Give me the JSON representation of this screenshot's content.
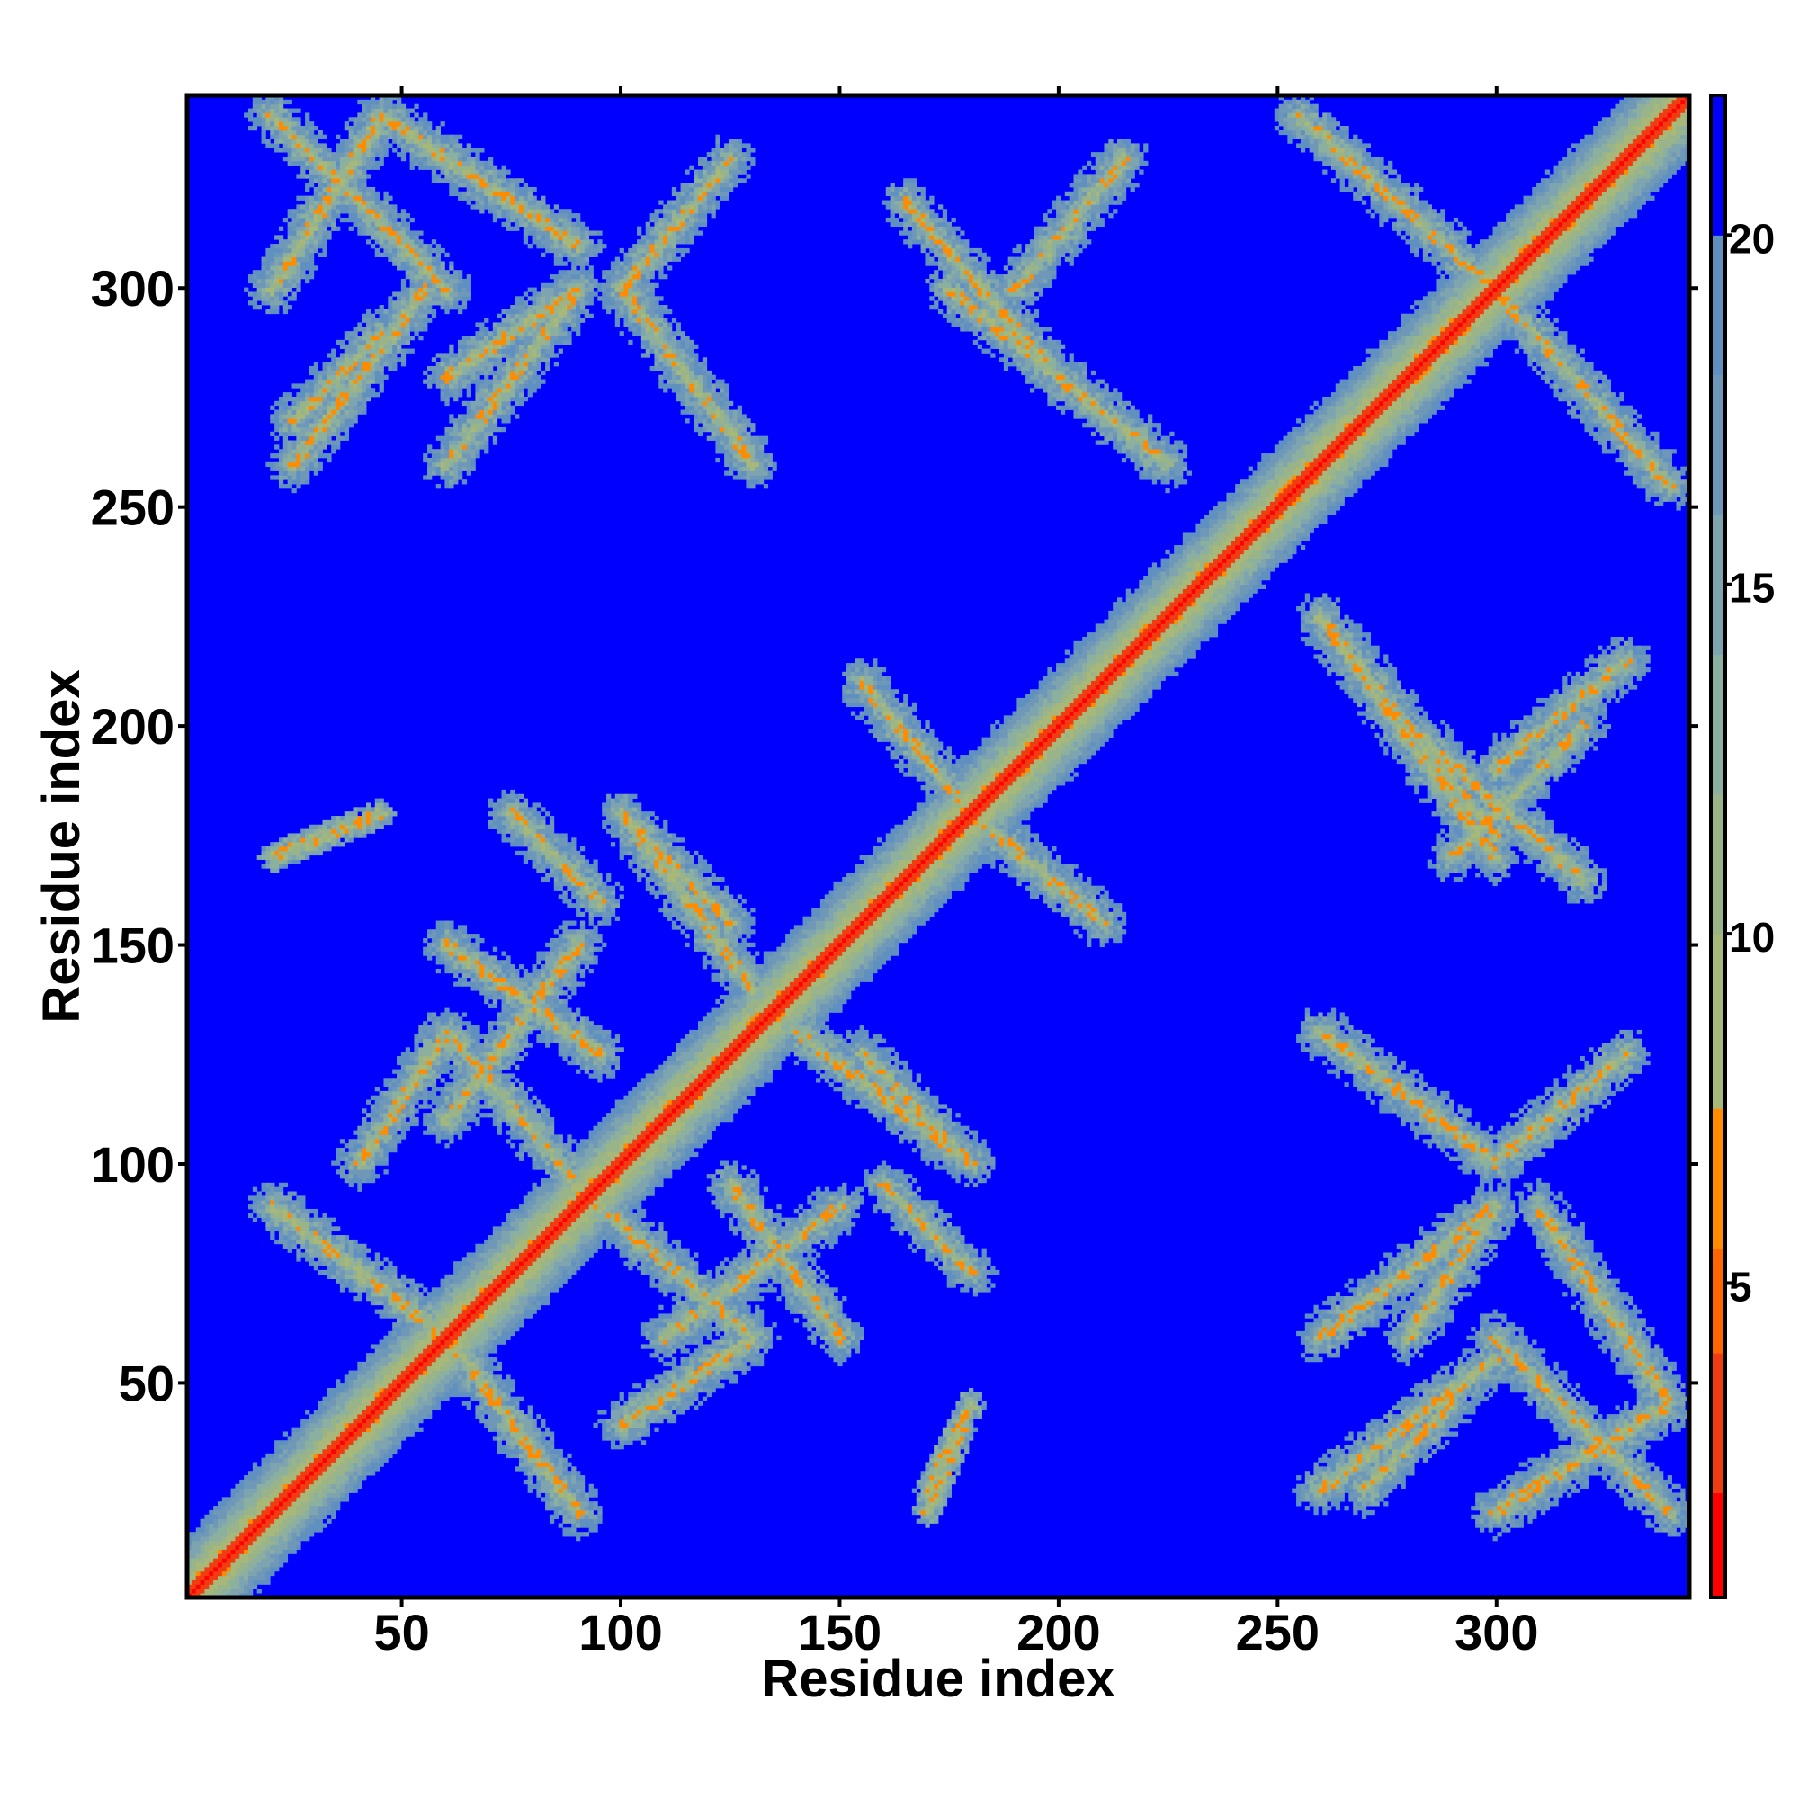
{
  "chart_data": {
    "type": "heatmap",
    "title": "",
    "xlabel": "Residue index",
    "ylabel": "Residue index",
    "n_residues": 344,
    "xlim": [
      1,
      344
    ],
    "ylim": [
      1,
      344
    ],
    "x_ticks": [
      50,
      100,
      150,
      200,
      250,
      300
    ],
    "y_ticks": [
      50,
      100,
      150,
      200,
      250,
      300
    ],
    "colorbar": {
      "range": [
        0.5,
        22
      ],
      "ticks": [
        5,
        10,
        15,
        20
      ],
      "levels": [
        {
          "from": 0.5,
          "to": 2,
          "color": "#ff0000"
        },
        {
          "from": 2,
          "to": 4,
          "color": "#f03c10"
        },
        {
          "from": 4,
          "to": 5.5,
          "color": "#ff6600"
        },
        {
          "from": 5.5,
          "to": 7.5,
          "color": "#ff8c00"
        },
        {
          "from": 7.5,
          "to": 10,
          "color": "#a8b878"
        },
        {
          "from": 10,
          "to": 12,
          "color": "#9ab48a"
        },
        {
          "from": 12,
          "to": 14,
          "color": "#8cb0a0"
        },
        {
          "from": 14,
          "to": 16,
          "color": "#7ea4b0"
        },
        {
          "from": 16,
          "to": 18,
          "color": "#6f98b8"
        },
        {
          "from": 18,
          "to": 20,
          "color": "#5f90c0"
        },
        {
          "from": 20,
          "to": 22,
          "color": "#0000ff"
        }
      ]
    },
    "contact_blocks": [
      {
        "i": [
          1,
          344
        ],
        "j": [
          1,
          344
        ],
        "kind": "diagonal"
      },
      {
        "i": [
          20,
          60
        ],
        "j": [
          60,
          90
        ],
        "kind": "antiparallel"
      },
      {
        "i": [
          60,
          90
        ],
        "j": [
          20,
          60
        ],
        "kind": "antiparallel"
      },
      {
        "i": [
          60,
          90
        ],
        "j": [
          95,
          130
        ],
        "kind": "antiparallel"
      },
      {
        "i": [
          95,
          130
        ],
        "j": [
          60,
          90
        ],
        "kind": "antiparallel"
      },
      {
        "i": [
          60,
          95
        ],
        "j": [
          125,
          150
        ],
        "kind": "antiparallel"
      },
      {
        "i": [
          125,
          150
        ],
        "j": [
          60,
          95
        ],
        "kind": "antiparallel"
      },
      {
        "i": [
          100,
          125
        ],
        "j": [
          155,
          180
        ],
        "kind": "antiparallel"
      },
      {
        "i": [
          155,
          180
        ],
        "j": [
          100,
          125
        ],
        "kind": "antiparallel"
      },
      {
        "i": [
          140,
          180
        ],
        "j": [
          100,
          130
        ],
        "kind": "antiparallel"
      },
      {
        "i": [
          100,
          130
        ],
        "j": [
          140,
          180
        ],
        "kind": "antiparallel"
      },
      {
        "i": [
          155,
          180
        ],
        "j": [
          180,
          210
        ],
        "kind": "antiparallel"
      },
      {
        "i": [
          180,
          210
        ],
        "j": [
          155,
          180
        ],
        "kind": "antiparallel"
      },
      {
        "i": [
          160,
          180
        ],
        "j": [
          75,
          95
        ],
        "kind": "antiparallel"
      },
      {
        "i": [
          75,
          95
        ],
        "j": [
          160,
          180
        ],
        "kind": "antiparallel"
      },
      {
        "i": [
          110,
          150
        ],
        "j": [
          60,
          90
        ],
        "kind": "parallel"
      },
      {
        "i": [
          60,
          90
        ],
        "j": [
          110,
          150
        ],
        "kind": "parallel"
      },
      {
        "i": [
          255,
          300
        ],
        "j": [
          300,
          340
        ],
        "kind": "antiparallel"
      },
      {
        "i": [
          300,
          340
        ],
        "j": [
          255,
          300
        ],
        "kind": "antiparallel"
      },
      {
        "i": [
          20,
          45
        ],
        "j": [
          300,
          340
        ],
        "kind": "parallel"
      },
      {
        "i": [
          300,
          340
        ],
        "j": [
          20,
          45
        ],
        "kind": "parallel"
      },
      {
        "i": [
          45,
          90
        ],
        "j": [
          310,
          340
        ],
        "kind": "antiparallel"
      },
      {
        "i": [
          310,
          340
        ],
        "j": [
          45,
          90
        ],
        "kind": "antiparallel"
      },
      {
        "i": [
          100,
          125
        ],
        "j": [
          300,
          330
        ],
        "kind": "parallel"
      },
      {
        "i": [
          300,
          330
        ],
        "j": [
          100,
          125
        ],
        "kind": "parallel"
      },
      {
        "i": [
          100,
          130
        ],
        "j": [
          260,
          300
        ],
        "kind": "antiparallel"
      },
      {
        "i": [
          260,
          300
        ],
        "j": [
          100,
          130
        ],
        "kind": "antiparallel"
      },
      {
        "i": [
          165,
          200
        ],
        "j": [
          280,
          320
        ],
        "kind": "antiparallel"
      },
      {
        "i": [
          280,
          320
        ],
        "j": [
          165,
          200
        ],
        "kind": "antiparallel"
      },
      {
        "i": [
          175,
          225
        ],
        "j": [
          260,
          300
        ],
        "kind": "antiparallel"
      },
      {
        "i": [
          260,
          300
        ],
        "j": [
          175,
          225
        ],
        "kind": "antiparallel"
      },
      {
        "i": [
          190,
          215
        ],
        "j": [
          300,
          330
        ],
        "kind": "parallel"
      },
      {
        "i": [
          300,
          330
        ],
        "j": [
          190,
          215
        ],
        "kind": "parallel"
      },
      {
        "i": [
          60,
          90
        ],
        "j": [
          280,
          300
        ],
        "kind": "parallel"
      },
      {
        "i": [
          280,
          300
        ],
        "j": [
          60,
          90
        ],
        "kind": "parallel"
      },
      {
        "i": [
          25,
          45
        ],
        "j": [
          270,
          290
        ],
        "kind": "parallel"
      },
      {
        "i": [
          270,
          290
        ],
        "j": [
          25,
          45
        ],
        "kind": "parallel"
      },
      {
        "i": [
          260,
          300
        ],
        "j": [
          170,
          225
        ],
        "kind": "antiparallel"
      },
      {
        "i": [
          290,
          320
        ],
        "j": [
          170,
          200
        ],
        "kind": "parallel"
      },
      {
        "i": [
          20,
          45
        ],
        "j": [
          170,
          180
        ],
        "kind": "spot"
      },
      {
        "i": [
          170,
          180
        ],
        "j": [
          20,
          45
        ],
        "kind": "spot"
      },
      {
        "i": [
          300,
          340
        ],
        "j": [
          20,
          60
        ],
        "kind": "antiparallel"
      },
      {
        "i": [
          20,
          60
        ],
        "j": [
          300,
          340
        ],
        "kind": "antiparallel"
      },
      {
        "i": [
          260,
          300
        ],
        "j": [
          25,
          55
        ],
        "kind": "parallel"
      },
      {
        "i": [
          25,
          55
        ],
        "j": [
          260,
          300
        ],
        "kind": "parallel"
      },
      {
        "i": [
          260,
          300
        ],
        "j": [
          60,
          90
        ],
        "kind": "parallel"
      },
      {
        "i": [
          60,
          90
        ],
        "j": [
          260,
          300
        ],
        "kind": "parallel"
      },
      {
        "i": [
          170,
          180
        ],
        "j": [
          25,
          45
        ],
        "kind": "spot"
      },
      {
        "i": [
          40,
          60
        ],
        "j": [
          100,
          130
        ],
        "kind": "parallel"
      },
      {
        "i": [
          100,
          130
        ],
        "j": [
          40,
          60
        ],
        "kind": "parallel"
      }
    ]
  }
}
